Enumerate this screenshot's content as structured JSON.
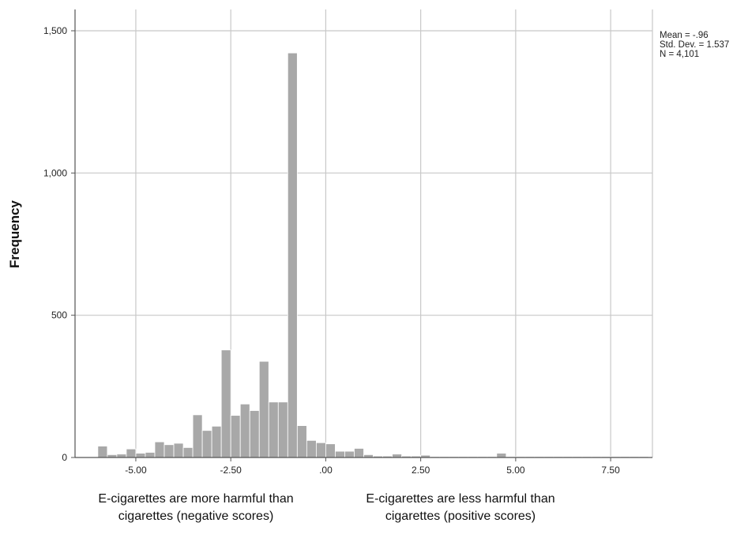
{
  "chart_data": {
    "type": "bar",
    "title": "",
    "xlabel": "",
    "ylabel": "Frequency",
    "xlim": [
      -6.6,
      8.6
    ],
    "ylim": [
      0,
      1500
    ],
    "xticks": [
      -5.0,
      -2.5,
      0.0,
      2.5,
      5.0,
      7.5
    ],
    "xtick_labels": [
      "-5.00",
      "-2.50",
      ".00",
      "2.50",
      "5.00",
      "7.50"
    ],
    "yticks": [
      0,
      500,
      1000,
      1500
    ],
    "ytick_labels": [
      "0",
      "500",
      "1,000",
      "1,500"
    ],
    "grid": true,
    "bin_width": 0.25,
    "bin_starts": [
      -6.0,
      -5.75,
      -5.5,
      -5.25,
      -5.0,
      -4.75,
      -4.5,
      -4.25,
      -4.0,
      -3.75,
      -3.5,
      -3.25,
      -3.0,
      -2.75,
      -2.5,
      -2.25,
      -2.0,
      -1.75,
      -1.5,
      -1.25,
      -1.0,
      -0.75,
      -0.5,
      -0.25,
      0.0,
      0.25,
      0.5,
      0.75,
      1.0,
      1.25,
      1.5,
      1.75,
      2.0,
      2.25,
      2.5,
      2.75,
      3.0,
      3.25,
      3.5,
      3.75,
      4.0,
      4.25,
      4.5,
      4.75,
      5.0,
      5.25,
      5.5,
      5.75,
      6.0,
      6.25,
      6.5,
      6.75,
      7.0,
      7.25,
      7.5,
      7.75,
      8.0,
      8.25
    ],
    "frequencies": [
      40,
      10,
      12,
      30,
      15,
      18,
      55,
      45,
      50,
      35,
      150,
      95,
      110,
      378,
      148,
      188,
      165,
      338,
      195,
      195,
      1422,
      112,
      60,
      52,
      48,
      22,
      22,
      32,
      10,
      5,
      5,
      12,
      5,
      5,
      8,
      3,
      3,
      3,
      3,
      3,
      3,
      3,
      15,
      3,
      3,
      3,
      3,
      3,
      3,
      3,
      3,
      3,
      3,
      3,
      3,
      3,
      3,
      3
    ],
    "stats": {
      "mean": "Mean = -.96",
      "std_dev": "Std. Dev. = 1.537",
      "n": "N = 4,101"
    },
    "annotations": {
      "left_caption": "E-cigarettes are more harmful than cigarettes (negative scores)",
      "right_caption": "E-cigarettes are less harmful than cigarettes (positive scores)"
    },
    "colors": {
      "bar_fill": "#a8a8a8",
      "bar_stroke": "#ffffff",
      "grid": "#c8c8c8",
      "axis": "#555555"
    }
  }
}
